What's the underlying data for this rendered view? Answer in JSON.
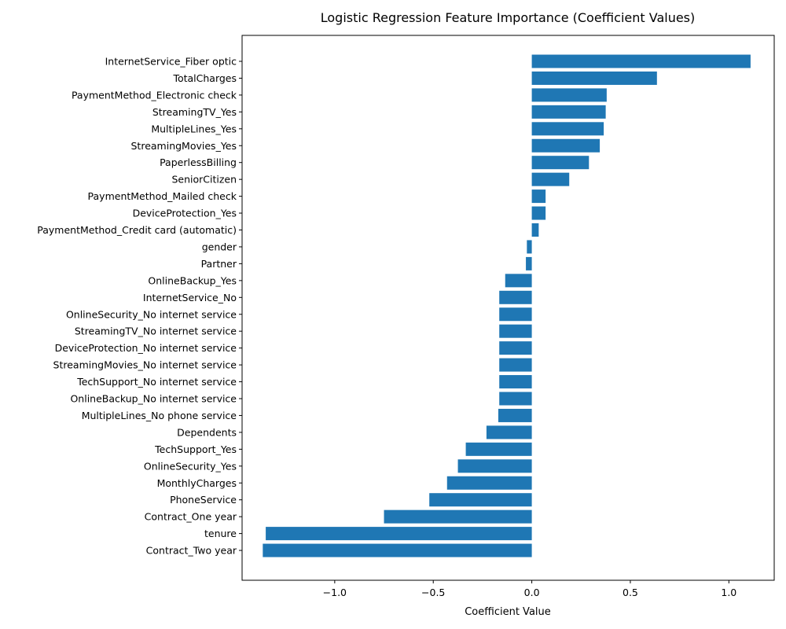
{
  "chart_data": {
    "type": "bar",
    "orientation": "horizontal",
    "title": "Logistic Regression Feature Importance (Coefficient Values)",
    "xlabel": "Coefficient Value",
    "ylabel": "",
    "xlim": [
      -1.47,
      1.23
    ],
    "xticks": [
      -1.0,
      -0.5,
      0.0,
      0.5,
      1.0
    ],
    "xtick_labels": [
      "−1.0",
      "−0.5",
      "0.0",
      "0.5",
      "1.0"
    ],
    "grid": false,
    "bar_color": "#1f77b4",
    "categories": [
      "InternetService_Fiber optic",
      "TotalCharges",
      "PaymentMethod_Electronic check",
      "StreamingTV_Yes",
      "MultipleLines_Yes",
      "StreamingMovies_Yes",
      "PaperlessBilling",
      "SeniorCitizen",
      "PaymentMethod_Mailed check",
      "DeviceProtection_Yes",
      "PaymentMethod_Credit card (automatic)",
      "gender",
      "Partner",
      "OnlineBackup_Yes",
      "InternetService_No",
      "OnlineSecurity_No internet service",
      "StreamingTV_No internet service",
      "DeviceProtection_No internet service",
      "StreamingMovies_No internet service",
      "TechSupport_No internet service",
      "OnlineBackup_No internet service",
      "MultipleLines_No phone service",
      "Dependents",
      "TechSupport_Yes",
      "OnlineSecurity_Yes",
      "MonthlyCharges",
      "PhoneService",
      "Contract_One year",
      "tenure",
      "Contract_Two year"
    ],
    "values": [
      1.11,
      0.635,
      0.38,
      0.375,
      0.365,
      0.345,
      0.29,
      0.19,
      0.07,
      0.07,
      0.035,
      -0.025,
      -0.03,
      -0.135,
      -0.165,
      -0.165,
      -0.165,
      -0.165,
      -0.165,
      -0.165,
      -0.165,
      -0.17,
      -0.23,
      -0.335,
      -0.375,
      -0.43,
      -0.52,
      -0.75,
      -1.35,
      -1.365
    ]
  }
}
